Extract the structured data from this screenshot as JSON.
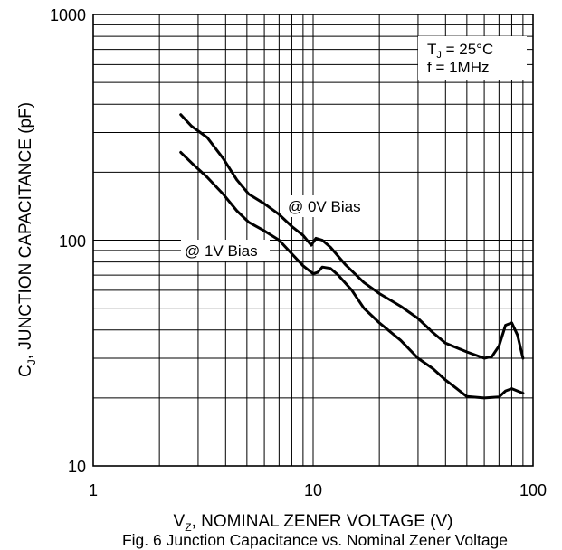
{
  "chart_data": {
    "type": "line",
    "title": "",
    "caption": "Fig. 6 Junction Capacitance vs. Nominal Zener Voltage",
    "xlabel": {
      "main": "V",
      "sub": "Z",
      "rest": ", NOMINAL ZENER VOLTAGE (V)"
    },
    "ylabel": {
      "pre": "C",
      "sub": "J",
      "rest": ", JUNCTION CAPACITANCE (pF)"
    },
    "x_scale": "log",
    "y_scale": "log",
    "xlim": [
      1,
      100
    ],
    "ylim": [
      10,
      1000
    ],
    "x_ticks": [
      1,
      10,
      100
    ],
    "x_tick_labels": [
      "1",
      "10",
      "100"
    ],
    "y_ticks": [
      10,
      100,
      1000
    ],
    "y_tick_labels": [
      "10",
      "100",
      "1000"
    ],
    "grid": true,
    "conditions": {
      "line1": {
        "pre": "T",
        "sub": "J",
        "rest": " = 25°C"
      },
      "line2": "f = 1MHz"
    },
    "series": [
      {
        "name": "@ 0V Bias",
        "points": [
          [
            2.5,
            360
          ],
          [
            2.8,
            320
          ],
          [
            3.3,
            285
          ],
          [
            3.9,
            230
          ],
          [
            4.5,
            185
          ],
          [
            5.1,
            160
          ],
          [
            6,
            145
          ],
          [
            7,
            130
          ],
          [
            8,
            115
          ],
          [
            9,
            105
          ],
          [
            9.8,
            95
          ],
          [
            10.3,
            102
          ],
          [
            11,
            100
          ],
          [
            12,
            93
          ],
          [
            14,
            78
          ],
          [
            17,
            65
          ],
          [
            20,
            58
          ],
          [
            25,
            51
          ],
          [
            30,
            45
          ],
          [
            35,
            39
          ],
          [
            40,
            35
          ],
          [
            50,
            32
          ],
          [
            60,
            30
          ],
          [
            65,
            30.5
          ],
          [
            70,
            34
          ],
          [
            75,
            42
          ],
          [
            80,
            43
          ],
          [
            85,
            38
          ],
          [
            90,
            30
          ]
        ]
      },
      {
        "name": "@ 1V Bias",
        "points": [
          [
            2.5,
            245
          ],
          [
            2.8,
            220
          ],
          [
            3.3,
            190
          ],
          [
            3.9,
            160
          ],
          [
            4.5,
            135
          ],
          [
            5.1,
            120
          ],
          [
            6,
            110
          ],
          [
            7,
            100
          ],
          [
            8,
            87
          ],
          [
            9,
            77
          ],
          [
            10,
            71
          ],
          [
            10.5,
            72
          ],
          [
            11,
            76
          ],
          [
            12,
            75
          ],
          [
            13,
            70
          ],
          [
            15,
            60
          ],
          [
            17,
            50
          ],
          [
            20,
            43
          ],
          [
            25,
            36
          ],
          [
            30,
            30
          ],
          [
            35,
            27
          ],
          [
            40,
            24
          ],
          [
            45,
            22
          ],
          [
            50,
            20.3
          ],
          [
            60,
            20
          ],
          [
            70,
            20.2
          ],
          [
            75,
            21.5
          ],
          [
            80,
            22
          ],
          [
            90,
            21
          ]
        ]
      }
    ]
  }
}
